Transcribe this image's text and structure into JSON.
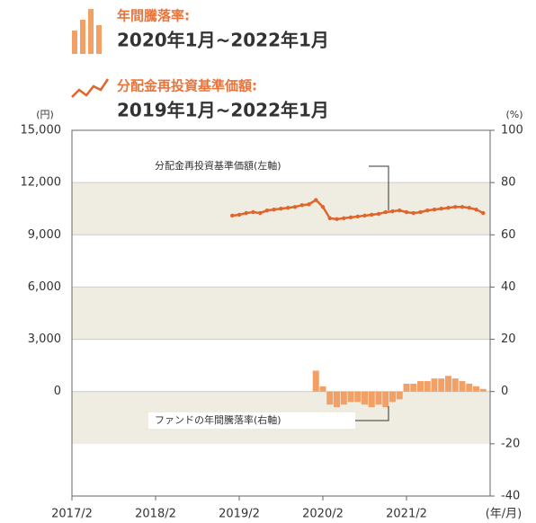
{
  "chart_data": {
    "type": "combo",
    "ylabel": "(円)",
    "y2label": "(%)",
    "ylim": [
      -6000,
      15000
    ],
    "yticks": [
      {
        "value": 15000,
        "label": "15,000"
      },
      {
        "value": 12000,
        "label": "12,000"
      },
      {
        "value": 9000,
        "label": "9,000"
      },
      {
        "value": 6000,
        "label": "6,000"
      },
      {
        "value": 3000,
        "label": "3,000"
      },
      0
    ],
    "y2lim": [
      -40,
      100
    ],
    "y2ticks": [
      100,
      80,
      60,
      40,
      20,
      0,
      -20,
      -40
    ],
    "xlim": [
      "2017/2",
      "2022/2"
    ],
    "xticks": [
      "2017/2",
      "2018/2",
      "2019/2",
      "2020/2",
      "2021/2"
    ],
    "xunit": "(年/月)",
    "grid": true,
    "bands": true,
    "band_color": "#efece2",
    "series": [
      {
        "name": "分配金再投資基準価額:",
        "period": "2019年1月~2022年1月",
        "type": "line",
        "color": "#e0652a",
        "annotation": "分配金再投資基準価額(左軸)",
        "x": [
          "2019/1",
          "2019/2",
          "2019/3",
          "2019/4",
          "2019/5",
          "2019/6",
          "2019/7",
          "2019/8",
          "2019/9",
          "2019/10",
          "2019/11",
          "2019/12",
          "2020/1",
          "2020/2",
          "2020/3",
          "2020/4",
          "2020/5",
          "2020/6",
          "2020/7",
          "2020/8",
          "2020/9",
          "2020/10",
          "2020/11",
          "2020/12",
          "2021/1",
          "2021/2",
          "2021/3",
          "2021/4",
          "2021/5",
          "2021/6",
          "2021/7",
          "2021/8",
          "2021/9",
          "2021/10",
          "2021/11",
          "2021/12",
          "2022/1"
        ],
        "values": [
          10100,
          10150,
          10250,
          10300,
          10250,
          10400,
          10450,
          10500,
          10550,
          10600,
          10700,
          10750,
          11000,
          10600,
          9950,
          9900,
          9950,
          10000,
          10050,
          10100,
          10150,
          10200,
          10300,
          10350,
          10400,
          10300,
          10250,
          10300,
          10400,
          10450,
          10500,
          10550,
          10600,
          10600,
          10550,
          10450,
          10250
        ]
      },
      {
        "name": "年間騰落率:",
        "period": "2020年1月~2022年1月",
        "type": "bar",
        "axis": "y2",
        "color": "#f2a066",
        "annotation": "ファンドの年間騰落率(右軸)",
        "x": [
          "2020/1",
          "2020/2",
          "2020/3",
          "2020/4",
          "2020/5",
          "2020/6",
          "2020/7",
          "2020/8",
          "2020/9",
          "2020/10",
          "2020/11",
          "2020/12",
          "2021/1",
          "2021/2",
          "2021/3",
          "2021/4",
          "2021/5",
          "2021/6",
          "2021/7",
          "2021/8",
          "2021/9",
          "2021/10",
          "2021/11",
          "2021/12",
          "2022/1"
        ],
        "values": [
          8,
          2,
          -5,
          -6,
          -5,
          -4,
          -4,
          -5,
          -6,
          -5,
          -6,
          -4,
          -3,
          3,
          3,
          4,
          4,
          5,
          5,
          6,
          5,
          4,
          3,
          2,
          1
        ]
      }
    ]
  }
}
